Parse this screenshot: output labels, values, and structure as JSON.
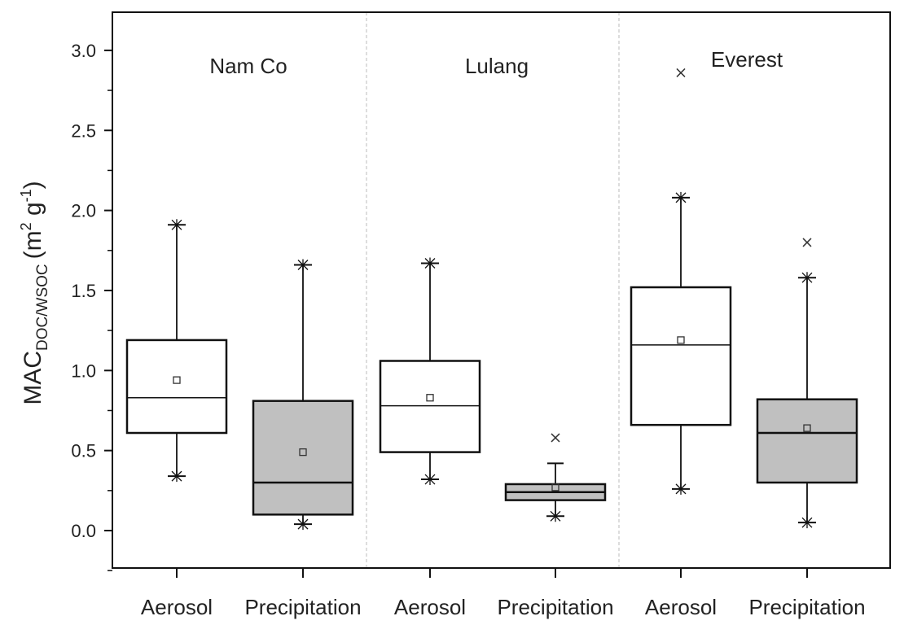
{
  "chart_data": {
    "type": "box",
    "title": "",
    "ylabel": {
      "main": "MAC",
      "sub": "DOC/WSOC",
      "unit_open": "(m",
      "unit_sup1": "2",
      "unit_mid": " g",
      "unit_sup2": "-1",
      "unit_close": ")"
    },
    "xlabel": "",
    "ylim": [
      -0.25,
      3.25
    ],
    "yticks": [
      0.0,
      0.5,
      1.0,
      1.5,
      2.0,
      2.5,
      3.0
    ],
    "ytick_labels": [
      "0.0",
      "0.5",
      "1.0",
      "1.5",
      "2.0",
      "2.5",
      "3.0"
    ],
    "groups": [
      {
        "name": "Nam Co",
        "boxes": [
          {
            "category": "Aerosol",
            "fill": "#ffffff",
            "whisker_low": 0.34,
            "q1": 0.61,
            "median": 0.83,
            "mean": 0.94,
            "q3": 1.19,
            "whisker_high": 1.91,
            "outliers": []
          },
          {
            "category": "Precipitation",
            "fill": "#c0c0c0",
            "whisker_low": 0.04,
            "q1": 0.1,
            "median": 0.3,
            "mean": 0.49,
            "q3": 0.81,
            "whisker_high": 1.66,
            "outliers": []
          }
        ]
      },
      {
        "name": "Lulang",
        "boxes": [
          {
            "category": "Aerosol",
            "fill": "#ffffff",
            "whisker_low": 0.32,
            "q1": 0.49,
            "median": 0.78,
            "mean": 0.83,
            "q3": 1.06,
            "whisker_high": 1.67,
            "outliers": []
          },
          {
            "category": "Precipitation",
            "fill": "#c0c0c0",
            "whisker_low": 0.09,
            "q1": 0.19,
            "median": 0.24,
            "mean": 0.27,
            "q3": 0.29,
            "whisker_high": 0.42,
            "outliers": [
              0.58
            ]
          }
        ]
      },
      {
        "name": "Everest",
        "boxes": [
          {
            "category": "Aerosol",
            "fill": "#ffffff",
            "whisker_low": 0.26,
            "q1": 0.66,
            "median": 1.16,
            "mean": 1.19,
            "q3": 1.52,
            "whisker_high": 2.08,
            "outliers": [
              2.86
            ]
          },
          {
            "category": "Precipitation",
            "fill": "#c0c0c0",
            "whisker_low": 0.05,
            "q1": 0.3,
            "median": 0.61,
            "mean": 0.64,
            "q3": 0.82,
            "whisker_high": 1.58,
            "outliers": [
              1.8
            ]
          }
        ]
      }
    ],
    "grid": false,
    "legend": "none"
  }
}
